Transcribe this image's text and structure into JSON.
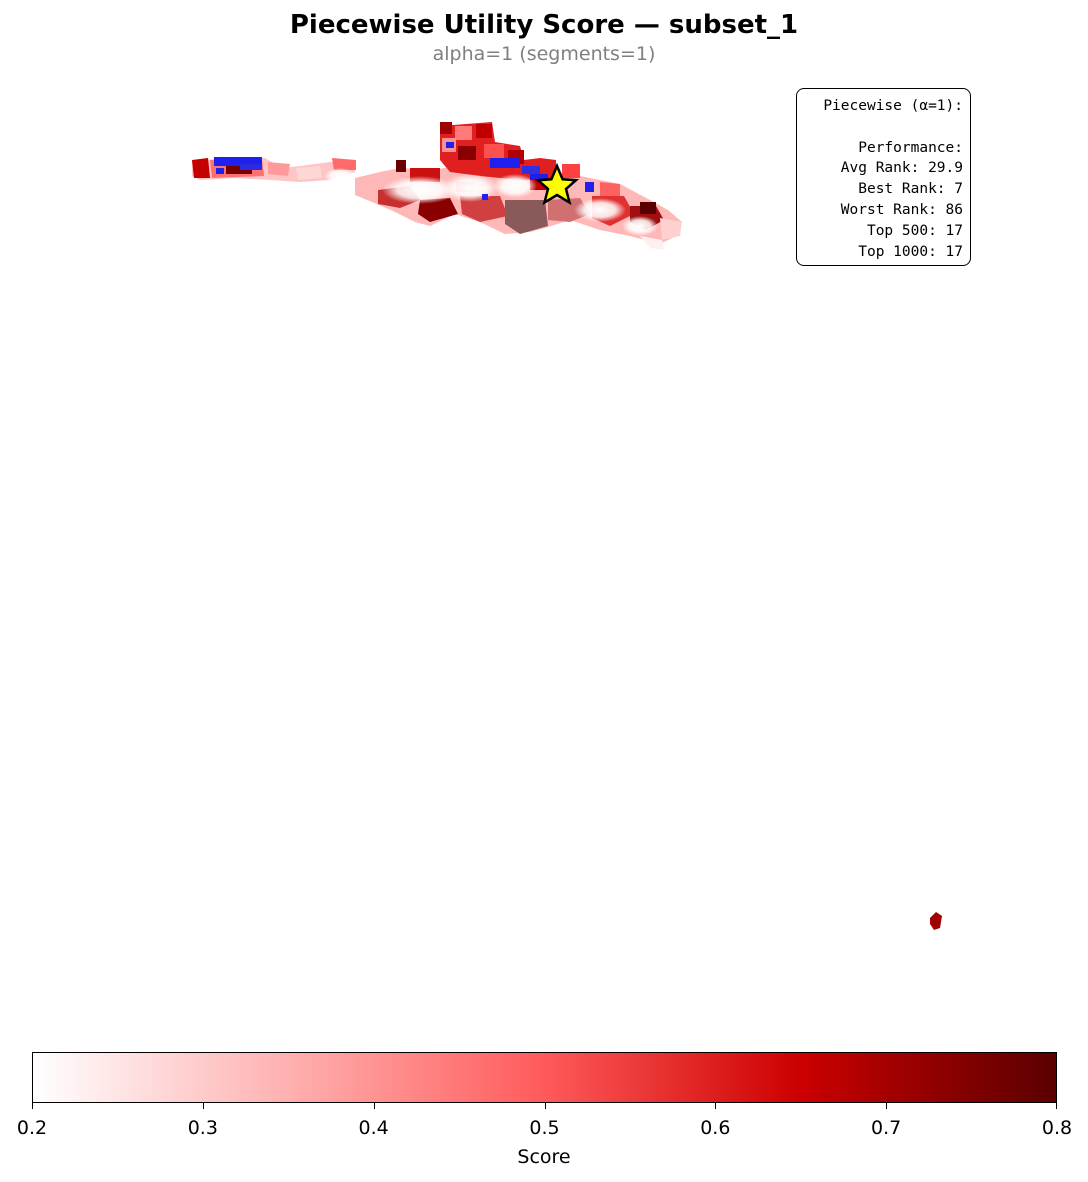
{
  "title": "Piecewise Utility Score — subset_1",
  "subtitle": "alpha=1 (segments=1)",
  "stats": {
    "heading": "Piecewise (α=1):",
    "section": "Performance:",
    "lines": [
      "Avg Rank: 29.9",
      "Best Rank: 7",
      "Worst Rank: 86",
      "Top 500: 17",
      "Top 1000: 17"
    ]
  },
  "colorbar": {
    "label": "Score",
    "min": 0.2,
    "max": 0.8,
    "ticks": [
      "0.2",
      "0.3",
      "0.4",
      "0.5",
      "0.6",
      "0.7",
      "0.8"
    ],
    "colors": [
      "#ffffff",
      "#ffb0b0",
      "#ff5a5a",
      "#cc0000",
      "#5a0000"
    ]
  },
  "markers": {
    "selected": {
      "symbol": "star",
      "color": "#ffff00"
    },
    "highlight_color": "#0000ff"
  }
}
